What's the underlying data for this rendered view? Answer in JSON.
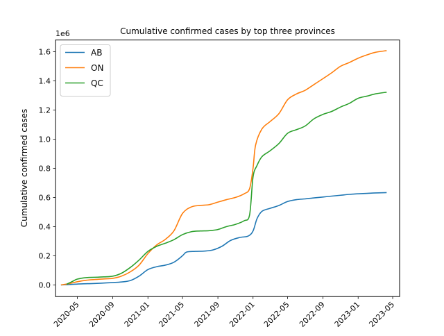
{
  "chart_data": {
    "type": "line",
    "title": "Cumulative confirmed cases by top three provinces",
    "xlabel": "",
    "ylabel": "Cumulative confirmed cases",
    "y_scale_label": "1e6",
    "xlim": [
      "2020-02-15",
      "2023-05-25"
    ],
    "ylim": [
      -0.08,
      1.68
    ],
    "x_ticks": [
      "2020-05-01",
      "2020-09-01",
      "2021-01-01",
      "2021-05-01",
      "2021-09-01",
      "2022-01-01",
      "2022-05-01",
      "2022-09-01",
      "2023-01-01",
      "2023-05-01"
    ],
    "x_tick_labels": [
      "2020-05",
      "2020-09",
      "2021-01",
      "2021-05",
      "2021-09",
      "2022-01",
      "2022-05",
      "2022-09",
      "2023-01",
      "2023-05"
    ],
    "y_ticks": [
      0.0,
      0.2,
      0.4,
      0.6,
      0.8,
      1.0,
      1.2,
      1.4,
      1.6
    ],
    "y_tick_labels": [
      "0.0",
      "0.2",
      "0.4",
      "0.6",
      "0.8",
      "1.0",
      "1.2",
      "1.4",
      "1.6"
    ],
    "grid": false,
    "legend_position": "top-left",
    "series": [
      {
        "name": "AB",
        "color": "#1f77b4",
        "points": [
          [
            "2020-03-05",
            0.0
          ],
          [
            "2020-04-01",
            0.002
          ],
          [
            "2020-05-01",
            0.006
          ],
          [
            "2020-06-01",
            0.008
          ],
          [
            "2020-07-01",
            0.01
          ],
          [
            "2020-08-01",
            0.013
          ],
          [
            "2020-09-01",
            0.016
          ],
          [
            "2020-10-01",
            0.02
          ],
          [
            "2020-11-01",
            0.03
          ],
          [
            "2020-12-01",
            0.06
          ],
          [
            "2021-01-01",
            0.105
          ],
          [
            "2021-02-01",
            0.125
          ],
          [
            "2021-03-01",
            0.135
          ],
          [
            "2021-04-01",
            0.155
          ],
          [
            "2021-05-01",
            0.2
          ],
          [
            "2021-05-15",
            0.225
          ],
          [
            "2021-06-15",
            0.23
          ],
          [
            "2021-07-15",
            0.232
          ],
          [
            "2021-08-15",
            0.24
          ],
          [
            "2021-09-15",
            0.265
          ],
          [
            "2021-10-15",
            0.305
          ],
          [
            "2021-11-15",
            0.325
          ],
          [
            "2021-12-15",
            0.335
          ],
          [
            "2022-01-01",
            0.37
          ],
          [
            "2022-01-15",
            0.455
          ],
          [
            "2022-02-01",
            0.505
          ],
          [
            "2022-03-01",
            0.525
          ],
          [
            "2022-04-01",
            0.545
          ],
          [
            "2022-05-01",
            0.572
          ],
          [
            "2022-06-01",
            0.585
          ],
          [
            "2022-07-01",
            0.59
          ],
          [
            "2022-08-01",
            0.597
          ],
          [
            "2022-09-01",
            0.603
          ],
          [
            "2022-10-01",
            0.609
          ],
          [
            "2022-11-01",
            0.615
          ],
          [
            "2022-12-01",
            0.621
          ],
          [
            "2023-01-01",
            0.625
          ],
          [
            "2023-02-01",
            0.628
          ],
          [
            "2023-03-01",
            0.631
          ],
          [
            "2023-04-10",
            0.633
          ]
        ]
      },
      {
        "name": "ON",
        "color": "#ff7f0e",
        "points": [
          [
            "2020-03-05",
            0.0
          ],
          [
            "2020-04-01",
            0.008
          ],
          [
            "2020-05-01",
            0.022
          ],
          [
            "2020-06-01",
            0.032
          ],
          [
            "2020-07-01",
            0.037
          ],
          [
            "2020-08-01",
            0.041
          ],
          [
            "2020-09-01",
            0.045
          ],
          [
            "2020-10-01",
            0.06
          ],
          [
            "2020-11-01",
            0.09
          ],
          [
            "2020-12-01",
            0.135
          ],
          [
            "2021-01-01",
            0.215
          ],
          [
            "2021-02-01",
            0.275
          ],
          [
            "2021-03-01",
            0.31
          ],
          [
            "2021-04-01",
            0.37
          ],
          [
            "2021-05-01",
            0.49
          ],
          [
            "2021-06-01",
            0.535
          ],
          [
            "2021-07-01",
            0.545
          ],
          [
            "2021-08-01",
            0.55
          ],
          [
            "2021-09-01",
            0.568
          ],
          [
            "2021-10-01",
            0.585
          ],
          [
            "2021-11-01",
            0.6
          ],
          [
            "2021-12-01",
            0.625
          ],
          [
            "2021-12-20",
            0.66
          ],
          [
            "2022-01-01",
            0.8
          ],
          [
            "2022-01-10",
            0.96
          ],
          [
            "2022-02-01",
            1.07
          ],
          [
            "2022-03-01",
            1.12
          ],
          [
            "2022-04-01",
            1.175
          ],
          [
            "2022-05-01",
            1.27
          ],
          [
            "2022-06-01",
            1.31
          ],
          [
            "2022-07-01",
            1.335
          ],
          [
            "2022-08-01",
            1.375
          ],
          [
            "2022-09-01",
            1.415
          ],
          [
            "2022-10-01",
            1.455
          ],
          [
            "2022-11-01",
            1.5
          ],
          [
            "2022-12-01",
            1.525
          ],
          [
            "2023-01-01",
            1.555
          ],
          [
            "2023-02-01",
            1.578
          ],
          [
            "2023-03-01",
            1.595
          ],
          [
            "2023-04-10",
            1.607
          ]
        ]
      },
      {
        "name": "QC",
        "color": "#2ca02c",
        "points": [
          [
            "2020-03-25",
            0.005
          ],
          [
            "2020-04-15",
            0.025
          ],
          [
            "2020-05-01",
            0.04
          ],
          [
            "2020-06-01",
            0.05
          ],
          [
            "2020-07-01",
            0.052
          ],
          [
            "2020-08-01",
            0.055
          ],
          [
            "2020-09-01",
            0.06
          ],
          [
            "2020-10-01",
            0.08
          ],
          [
            "2020-11-01",
            0.12
          ],
          [
            "2020-12-01",
            0.17
          ],
          [
            "2021-01-01",
            0.23
          ],
          [
            "2021-02-01",
            0.265
          ],
          [
            "2021-03-01",
            0.285
          ],
          [
            "2021-04-01",
            0.31
          ],
          [
            "2021-05-01",
            0.345
          ],
          [
            "2021-06-01",
            0.365
          ],
          [
            "2021-07-01",
            0.37
          ],
          [
            "2021-08-01",
            0.372
          ],
          [
            "2021-09-01",
            0.38
          ],
          [
            "2021-10-01",
            0.4
          ],
          [
            "2021-11-01",
            0.415
          ],
          [
            "2021-12-01",
            0.44
          ],
          [
            "2021-12-20",
            0.48
          ],
          [
            "2022-01-01",
            0.74
          ],
          [
            "2022-01-15",
            0.82
          ],
          [
            "2022-02-01",
            0.88
          ],
          [
            "2022-03-01",
            0.92
          ],
          [
            "2022-04-01",
            0.97
          ],
          [
            "2022-05-01",
            1.04
          ],
          [
            "2022-06-01",
            1.065
          ],
          [
            "2022-07-01",
            1.09
          ],
          [
            "2022-08-01",
            1.14
          ],
          [
            "2022-09-01",
            1.17
          ],
          [
            "2022-10-01",
            1.19
          ],
          [
            "2022-11-01",
            1.22
          ],
          [
            "2022-12-01",
            1.245
          ],
          [
            "2023-01-01",
            1.28
          ],
          [
            "2023-02-01",
            1.295
          ],
          [
            "2023-03-01",
            1.31
          ],
          [
            "2023-04-10",
            1.322
          ]
        ]
      }
    ]
  }
}
